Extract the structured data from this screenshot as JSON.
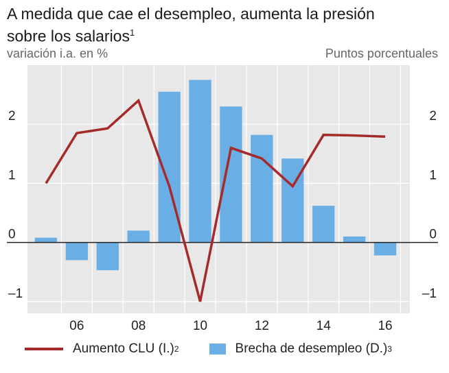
{
  "title": {
    "line1": "A medida que cae el desempleo, aumenta la presión",
    "line2": "sobre los salarios",
    "footnote": "1"
  },
  "axis_labels": {
    "left": "variación i.a. en %",
    "right": "Puntos porcentuales"
  },
  "legend": {
    "line_label": "Aumento CLU (I.)",
    "line_footnote": "2",
    "bar_label": "Brecha de desempleo (D.)",
    "bar_footnote": "3"
  },
  "colors": {
    "line": "#a52a2a",
    "bars": "#6aaee6",
    "plot_bg": "#e8e8e8",
    "gridlines": "#ffffff",
    "zero_line": "#222222"
  },
  "chart_data": {
    "type": "bar",
    "x": [
      2005,
      2006,
      2007,
      2008,
      2009,
      2010,
      2011,
      2012,
      2013,
      2014,
      2015,
      2016
    ],
    "x_ticks": [
      2006,
      2008,
      2010,
      2012,
      2014,
      2016
    ],
    "x_tick_labels": [
      "06",
      "08",
      "10",
      "12",
      "14",
      "16"
    ],
    "xlim": [
      2004.4,
      2016.8
    ],
    "ylim": [
      -1.2,
      3.0
    ],
    "y_ticks": [
      -1,
      0,
      1,
      2
    ],
    "y_tick_labels": [
      "–1",
      "0",
      "1",
      "2"
    ],
    "grid": true,
    "legend_position": "bottom",
    "series": [
      {
        "name": "Brecha de desempleo (D.)",
        "type": "bar",
        "axis": "right",
        "values": [
          0.08,
          -0.3,
          -0.47,
          0.2,
          2.55,
          2.75,
          2.3,
          1.82,
          1.42,
          0.62,
          0.1,
          -0.22
        ]
      },
      {
        "name": "Aumento CLU (I.)",
        "type": "line",
        "axis": "left",
        "values": [
          1.0,
          1.85,
          1.93,
          2.4,
          0.95,
          -1.0,
          1.6,
          1.42,
          0.95,
          1.82,
          1.81,
          1.79
        ]
      }
    ]
  }
}
